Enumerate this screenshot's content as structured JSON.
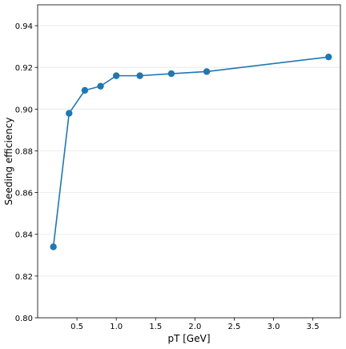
{
  "chart_data": {
    "type": "line",
    "title": "",
    "xlabel": "pT [GeV]",
    "ylabel": "Seeding efficiency",
    "xlim": [
      0.0,
      3.85
    ],
    "ylim": [
      0.8,
      0.95
    ],
    "x_ticks": [
      0.5,
      1.0,
      1.5,
      2.0,
      2.5,
      3.0,
      3.5
    ],
    "x_tick_labels": [
      "0.5",
      "1.0",
      "1.5",
      "2.0",
      "2.5",
      "3.0",
      "3.5"
    ],
    "y_ticks": [
      0.8,
      0.82,
      0.84,
      0.86,
      0.88,
      0.9,
      0.92,
      0.94
    ],
    "y_tick_labels": [
      "0.80",
      "0.82",
      "0.84",
      "0.86",
      "0.88",
      "0.90",
      "0.92",
      "0.94"
    ],
    "grid": "horizontal",
    "legend": "none",
    "series": [
      {
        "color": "#1f77b4",
        "marker": "circle",
        "x": [
          0.2,
          0.4,
          0.6,
          0.8,
          1.0,
          1.3,
          1.7,
          2.15,
          3.7
        ],
        "y": [
          0.834,
          0.898,
          0.909,
          0.911,
          0.916,
          0.916,
          0.917,
          0.918,
          0.925
        ]
      }
    ]
  }
}
